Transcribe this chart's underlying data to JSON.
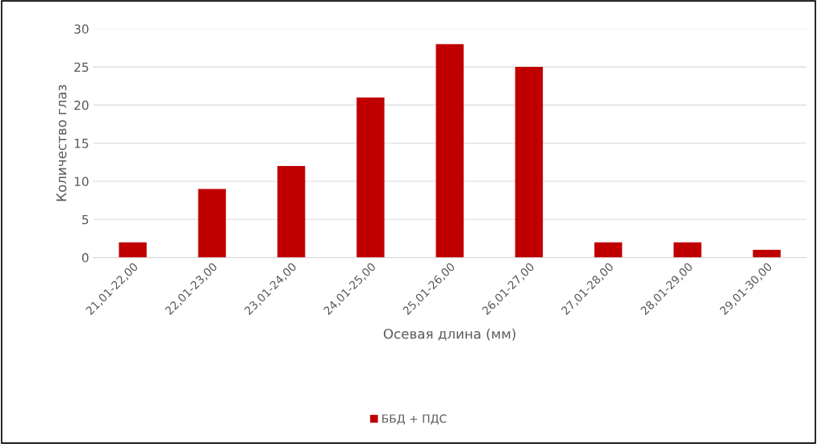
{
  "chart_data": {
    "type": "bar",
    "xlabel": "Осевая длина (мм)",
    "ylabel": "Количество глаз",
    "categories": [
      "21,01-22,00",
      "22,01-23,00",
      "23,01-24,00",
      "24,01-25,00",
      "25,01-26,00",
      "26,01-27,00",
      "27,01-28,00",
      "28,01-29,00",
      "29,01-30,00"
    ],
    "series": [
      {
        "name": "ББД + ПДС",
        "color": "#c00000",
        "values": [
          2,
          9,
          12,
          21,
          28,
          25,
          2,
          2,
          1
        ]
      }
    ],
    "ylim": [
      0,
      30
    ],
    "yticks": [
      0,
      5,
      10,
      15,
      20,
      25,
      30
    ],
    "grid": "y",
    "legend": "bottom"
  }
}
